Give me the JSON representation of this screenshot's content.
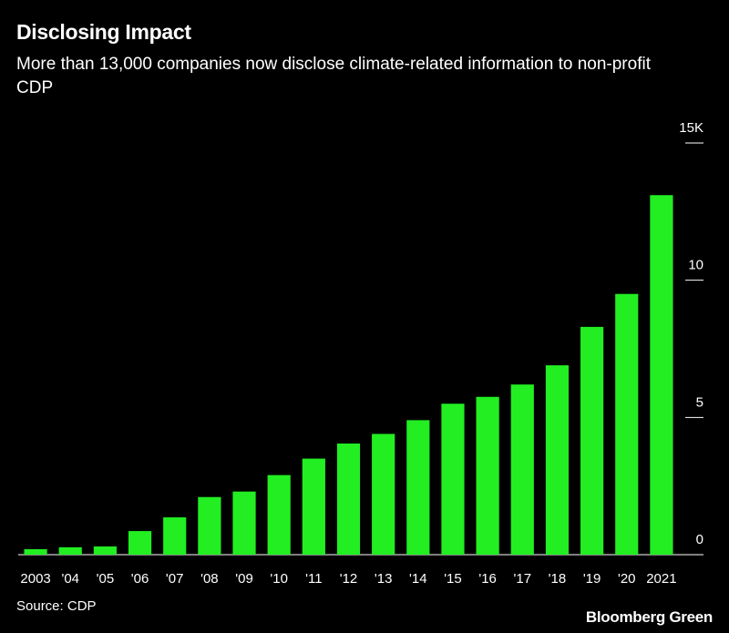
{
  "chart_data": {
    "type": "bar",
    "title": "Disclosing Impact",
    "subtitle": "More than 13,000 companies now disclose climate-related information to non-profit CDP",
    "source": "Source: CDP",
    "brand": "Bloomberg Green",
    "categories": [
      "2003",
      "'04",
      "'05",
      "'06",
      "'07",
      "'08",
      "'09",
      "'10",
      "'11",
      "'12",
      "'13",
      "'14",
      "'15",
      "'16",
      "'17",
      "'18",
      "'19",
      "'20",
      "2021"
    ],
    "values": [
      0.2,
      0.27,
      0.3,
      0.86,
      1.36,
      2.1,
      2.3,
      2.9,
      3.5,
      4.05,
      4.4,
      4.9,
      5.5,
      5.75,
      6.2,
      6.9,
      8.3,
      9.5,
      13.1
    ],
    "color": "#22ee22",
    "ylim": [
      0,
      15
    ],
    "yticks": [
      0,
      5,
      10,
      {
        "value": 15,
        "label": "15K"
      }
    ]
  }
}
